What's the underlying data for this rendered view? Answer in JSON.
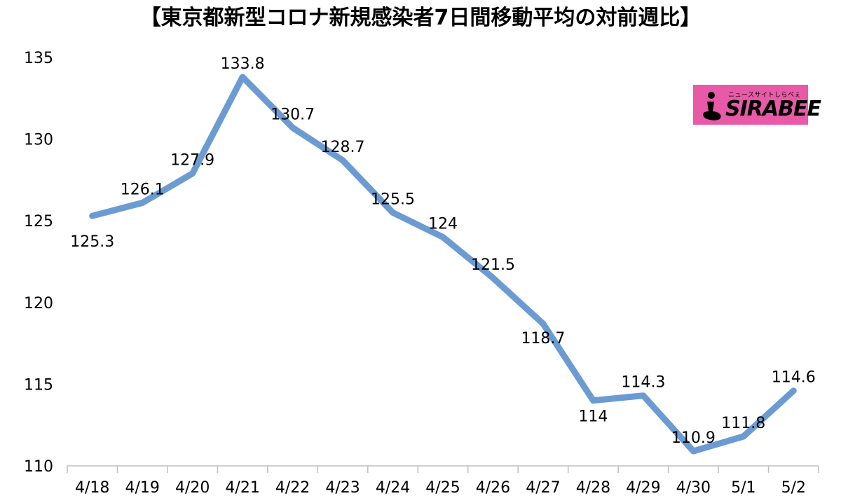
{
  "chart_data": {
    "type": "line",
    "title": "【東京都新型コロナ新規感染者7日間移動平均の対前週比】",
    "categories": [
      "4/18",
      "4/19",
      "4/20",
      "4/21",
      "4/22",
      "4/23",
      "4/24",
      "4/25",
      "4/26",
      "4/27",
      "4/28",
      "4/29",
      "4/30",
      "5/1",
      "5/2"
    ],
    "series": [
      {
        "values": [
          125.3,
          126.1,
          127.9,
          133.8,
          130.7,
          128.7,
          125.5,
          124,
          121.5,
          118.7,
          114,
          114.3,
          110.9,
          111.8,
          114.6
        ],
        "labels": [
          "125.3",
          "126.1",
          "127.9",
          "133.8",
          "130.7",
          "128.7",
          "125.5",
          "124",
          "121.5",
          "118.7",
          "114",
          "114.3",
          "110.9",
          "111.8",
          "114.6"
        ],
        "color": "#6b9bd2"
      }
    ],
    "ylim": [
      110,
      135
    ],
    "yticks": [
      110,
      115,
      120,
      125,
      130,
      135
    ],
    "xlabel": "",
    "ylabel": "",
    "grid": false,
    "legend": "none"
  },
  "logo": {
    "main_text": "SIRABEE",
    "sub_text": "ニュースサイトしらべぇ",
    "background": "#e85aa8"
  }
}
